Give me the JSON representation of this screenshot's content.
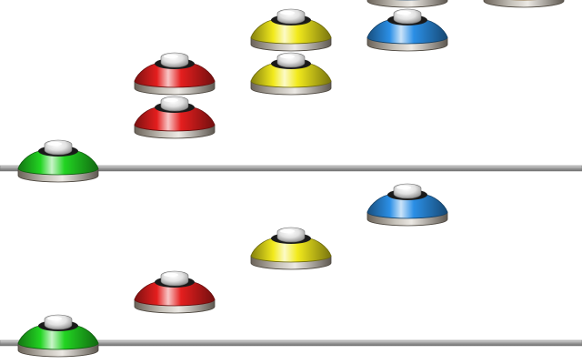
{
  "palette": {
    "background": "#ffffff",
    "rail": "#a8a8a8",
    "green": "#22d422",
    "red": "#e41e1e",
    "yellow": "#f2ea1c",
    "blue": "#2b8fe6",
    "orange": "#f5a31c"
  },
  "icons": {
    "disc": "disc-icon",
    "rail": "rail-line"
  },
  "upper_sequence": {
    "rail_color": "rail",
    "columns": [
      {
        "column": 1,
        "stack": [
          "green"
        ]
      },
      {
        "column": 2,
        "stack": [
          "red",
          "red"
        ]
      },
      {
        "column": 3,
        "stack": [
          "yellow",
          "yellow"
        ]
      },
      {
        "column": 4,
        "stack": [
          "blue",
          "blue"
        ]
      },
      {
        "column": 5,
        "stack": [
          "orange"
        ]
      }
    ]
  },
  "lower_sequence": {
    "rail_color": "rail",
    "columns": [
      {
        "column": 1,
        "stack": [
          "green"
        ]
      },
      {
        "column": 2,
        "stack": [
          "red"
        ]
      },
      {
        "column": 3,
        "stack": [
          "yellow"
        ]
      },
      {
        "column": 4,
        "stack": [
          "blue"
        ]
      }
    ]
  }
}
